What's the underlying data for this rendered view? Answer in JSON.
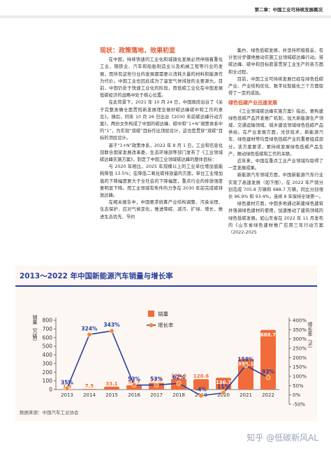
{
  "header": {
    "chapter": "第二章：中国工业可持续发展概况"
  },
  "article": {
    "heading": "现状：政策落地，效果初显",
    "left_paragraphs": [
      "在中国，持续快速的工业化和城镇化发展必然伴随着重化工业、钢铁业、汽车和船舶制造业以及机械工程等行业的发展，而所有这些行业的发展都需要以消耗大量的材料和能源作为代价。中国工业也因此成为了温室气体排放的主要源头。目前，中国仍处于快速工业化的阶段，而低碳工业化在中国发展低碳经济的战略中处于核心位置。",
      "在此背景下，2021 年 10 月 24 日，中国政府出台了《关于完整准确全面贯彻新发展理念做好碳达峰碳中和工作的意见》。随后，同年 10 月 26 日出台《2030 年前碳达峰行动方案》，两份文件构成了中国的碳达峰、碳中和“1+N”政策体系中的“1”，为实现“双碳”目标作出顶层设计，这也是贯穿“双碳”目标的顶层设计。",
      "基于“1+N”政策体系，2022 年 8 月 1 日，工业和信息化部联合国家发展改革委、生态环境部等部门发布了《工业领域碳达峰实施方案》，制定了中国工业领域碳达峰的整体目标：",
      "与 2020 年相比，2025 年规模以上的工业单位增加值能耗降低 13.5%；在降低二氧化碳排放量的方面，单位工业增加值的下降幅度要大于全社会的下降幅度，重点行业的排放强度要明显下降。而工业领域有条件的力争在 2030 年前完成碳排放达峰。",
      "在相关报告中，中国要求统筹产业结构调整、污染治理、生态保护、应对气候变化，推进降碳、减污、扩绿、增长，推进生态优先、节约"
    ],
    "right_paragraphs": [
      "集约、绿色低碳发展，并坚持积极稳妥、有计划分步骤地推动实施工业领域碳达峰行动。将碳达峰、碳中和目标愿景贯穿工业生产的各方面和全过程。",
      "目前，中国工业可持续发展已经在绿色低碳产业、产业结构优化、数字化智能化三个方面取得了一定的成效。"
    ],
    "subheading": "绿色低碳产业迅速发展",
    "right_paragraphs_2": [
      "《工业领域碳达峰实施方案》指出，要构建绿色低碳产品开发推广机制，加大新能源生产领域、交通运输领域、城乡建设领域绿色低碳产品供给。在产业发展方面，光伏技术、新能源汽车、绿色建材等均是绿色低碳产业的重要组成部分。该方案要求，要持续发展绿色低碳产品生产，推动绿色低碳和工作的关联。",
      "近年来，中国在重点工业产业领域均取得了一定发展成果。",
      "新能源汽车领域方面，中国新能源汽车行业实现了高速发展（如下图），在 2022 年产销分别完成 705.8 万辆和 688.7 万辆，同比分别增长 96.9% 和 93.4%，连续 8 年保持全球第一。",
      "绿色建材方面，中国多地通过新建绿色建筑并强调绿色建材的使用，加速推动了建筑领域的绿色低碳发展。如山东省在 2022 年 11 月发布的《山东省绿色建材推广应用三年行动方案（2022-2025"
    ]
  },
  "chart_data": {
    "type": "bar",
    "title": "2013～2022 年中国新能源汽车销量与增长率",
    "y_label": "销量（万辆）",
    "y2_label": "增长率（%）",
    "categories": [
      "2013",
      "2014",
      "2015",
      "2016",
      "2017",
      "2018",
      "2019",
      "2020",
      "2021",
      "2022"
    ],
    "series": [
      {
        "name": "销量",
        "color": "#f26b3a",
        "values": [
          1.8,
          7.5,
          33.1,
          50.7,
          77.7,
          125.6,
          120.6,
          136.7,
          352.1,
          688.7
        ]
      },
      {
        "name": "增长率",
        "color": "#2b3f9e",
        "marker_color": "#f5892f",
        "axis": "y2",
        "type": "line",
        "values": [
          35,
          324,
          343,
          53,
          53,
          62,
          -4,
          11,
          158,
          93
        ],
        "value_labels": [
          "35%",
          "324%",
          "343%",
          "53%",
          "53%",
          "62%",
          "-4%",
          "11%",
          "158%",
          "93%"
        ]
      }
    ],
    "ylim": [
      0,
      800
    ],
    "yticks": [
      0,
      100,
      200,
      300,
      400,
      500,
      600,
      700,
      800
    ],
    "y2lim": [
      -50,
      400
    ],
    "y2ticks": [
      {
        "value": -50,
        "label": "-50%"
      },
      {
        "value": 0,
        "label": "0%"
      },
      {
        "value": 50,
        "label": "50%"
      },
      {
        "value": 100,
        "label": "100%"
      },
      {
        "value": 150,
        "label": "150%"
      },
      {
        "value": 200,
        "label": "200%"
      },
      {
        "value": 250,
        "label": "250%"
      },
      {
        "value": 300,
        "label": "300%"
      },
      {
        "value": 350,
        "label": "350%"
      },
      {
        "value": 400,
        "label": "400%"
      }
    ],
    "legend": "top",
    "source": "数据来源：中国汽车工业协会"
  },
  "footer": {
    "watermark": "知乎 @低碳新风AL"
  }
}
